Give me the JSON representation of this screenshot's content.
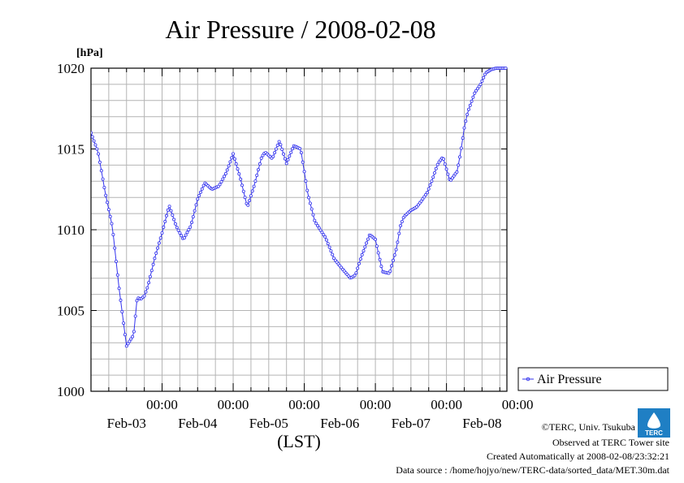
{
  "chart_data": {
    "type": "line",
    "title": "Air Pressure / 2008-02-08",
    "ylabel": "[hPa]",
    "xlabel": "(LST)",
    "ylim": [
      1000,
      1020
    ],
    "y_ticks": [
      "1000",
      "1005",
      "1010",
      "1015",
      "1020"
    ],
    "y_tick_values": [
      1000,
      1005,
      1010,
      1015,
      1020
    ],
    "x_ticks": [
      {
        "time": "00:00",
        "date": "Feb-03"
      },
      {
        "time": "00:00",
        "date": "Feb-04"
      },
      {
        "time": "00:00",
        "date": "Feb-05"
      },
      {
        "time": "00:00",
        "date": "Feb-06"
      },
      {
        "time": "00:00",
        "date": "Feb-07"
      },
      {
        "time": "00:00",
        "date": "Feb-08"
      }
    ],
    "x_range_days": [
      -1.0,
      4.85
    ],
    "grid": true,
    "legend_position": "right",
    "series": [
      {
        "name": "Air Pressure",
        "color": "#3333ee",
        "x": [
          -1.0,
          -0.9,
          -0.8,
          -0.7,
          -0.6,
          -0.5,
          -0.4,
          -0.35,
          -0.3,
          -0.25,
          -0.2,
          -0.1,
          0.0,
          0.1,
          0.2,
          0.3,
          0.4,
          0.42,
          0.5,
          0.6,
          0.7,
          0.8,
          0.9,
          1.0,
          1.1,
          1.2,
          1.3,
          1.4,
          1.45,
          1.55,
          1.65,
          1.75,
          1.85,
          1.95,
          2.05,
          2.15,
          2.3,
          2.42,
          2.55,
          2.65,
          2.72,
          2.8,
          2.92,
          3.0,
          3.1,
          3.2,
          3.3,
          3.35,
          3.4,
          3.5,
          3.58,
          3.65,
          3.73,
          3.8,
          3.88,
          3.95,
          4.05,
          4.15,
          4.2,
          4.25,
          4.3,
          4.4,
          4.48,
          4.55,
          4.62,
          4.7,
          4.78,
          4.85
        ],
        "values": [
          1016.0,
          1014.8,
          1012.3,
          1010.2,
          1006.2,
          1002.8,
          1003.5,
          1005.8,
          1005.7,
          1005.9,
          1006.5,
          1008.3,
          1009.8,
          1011.5,
          1010.2,
          1009.4,
          1010.2,
          1010.5,
          1011.9,
          1012.9,
          1012.5,
          1012.7,
          1013.5,
          1014.7,
          1013.2,
          1011.4,
          1012.8,
          1014.5,
          1014.8,
          1014.4,
          1015.5,
          1014.1,
          1015.2,
          1015.0,
          1012.2,
          1010.5,
          1009.5,
          1008.2,
          1007.5,
          1007.0,
          1007.2,
          1008.3,
          1009.7,
          1009.4,
          1007.4,
          1007.3,
          1008.9,
          1010.2,
          1010.8,
          1011.2,
          1011.4,
          1011.8,
          1012.3,
          1013.1,
          1014.1,
          1014.5,
          1013.0,
          1013.6,
          1014.8,
          1016.3,
          1017.3,
          1018.5,
          1019.0,
          1019.7,
          1019.9,
          1020.0,
          1020.0,
          1020.0
        ]
      }
    ]
  },
  "credits": {
    "copyright": "©TERC, Univ. Tsukuba",
    "observed": "Observed at TERC Tower site",
    "created": "Created Automatically at 2008-02-08/23:32:21",
    "source": "Data source : /home/hojyo/new/TERC-data/sorted_data/MET.30m.dat"
  },
  "logo": {
    "text": "TERC",
    "color": "#1f7fc4"
  }
}
